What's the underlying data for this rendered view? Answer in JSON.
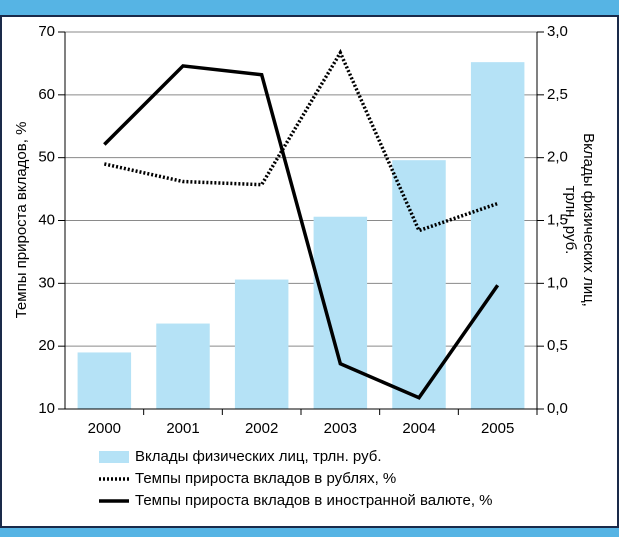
{
  "chart_data": {
    "type": "combo",
    "categories": [
      "2000",
      "2001",
      "2002",
      "2003",
      "2004",
      "2005"
    ],
    "y_label": "Темпы прироста вкладов, %",
    "y2_label": [
      "Вклады физических лиц,",
      "трлн. руб."
    ],
    "ylim": [
      10,
      70
    ],
    "yticks": [
      10,
      20,
      30,
      40,
      50,
      60,
      70
    ],
    "y2lim": [
      0,
      3
    ],
    "y2ticks": [
      {
        "value": 0,
        "label": "0,0"
      },
      {
        "value": 0.5,
        "label": "0,5"
      },
      {
        "value": 1,
        "label": "1,0"
      },
      {
        "value": 1.5,
        "label": "1,5"
      },
      {
        "value": 2,
        "label": "2,0"
      },
      {
        "value": 2.5,
        "label": "2,5"
      },
      {
        "value": 3,
        "label": "3,0"
      }
    ],
    "grid": true,
    "series": [
      {
        "name": "Вклады физических лиц, трлн. руб.",
        "kind": "bar",
        "axis": "y2",
        "color": "#b5e2f6",
        "values": [
          0.45,
          0.68,
          1.03,
          1.53,
          1.98,
          2.76
        ]
      },
      {
        "name": "Темпы прироста вкладов в рублях, %",
        "kind": "line",
        "dash": "dotted",
        "color": "#000000",
        "values": [
          49.0,
          46.2,
          45.7,
          66.7,
          38.4,
          42.7
        ]
      },
      {
        "name": "Темпы прироста вкладов в иностранной валюте, %",
        "kind": "line",
        "dash": "solid",
        "color": "#000000",
        "values": [
          52.1,
          64.6,
          63.2,
          17.2,
          11.8,
          29.7
        ]
      }
    ]
  }
}
